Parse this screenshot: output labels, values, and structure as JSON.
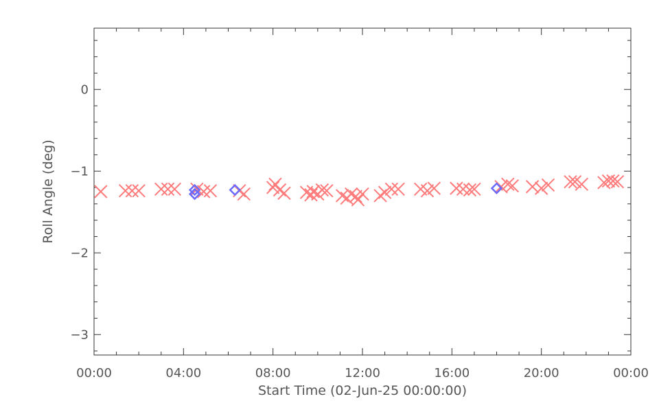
{
  "chart_data": {
    "type": "scatter",
    "title": "",
    "xlabel": "Start Time (02-Jun-25 00:00:00)",
    "ylabel": "Roll Angle (deg)",
    "x_unit": "hours",
    "xlim": [
      0,
      24
    ],
    "ylim": [
      -3.25,
      0.75
    ],
    "x_ticks": [
      0,
      4,
      8,
      12,
      16,
      20,
      24
    ],
    "x_tick_labels": [
      "00:00",
      "04:00",
      "08:00",
      "12:00",
      "16:00",
      "20:00",
      "00:00"
    ],
    "y_ticks": [
      0,
      -1,
      -2,
      -3
    ],
    "y_tick_labels": [
      "0",
      "−1",
      "−2",
      "−3"
    ],
    "grid": false,
    "series": [
      {
        "marker": "x",
        "color": "#ff7a7a",
        "points": [
          [
            0.3,
            -1.25
          ],
          [
            1.4,
            -1.24
          ],
          [
            1.7,
            -1.24
          ],
          [
            2.0,
            -1.24
          ],
          [
            3.0,
            -1.22
          ],
          [
            3.3,
            -1.22
          ],
          [
            3.6,
            -1.22
          ],
          [
            4.6,
            -1.22
          ],
          [
            4.9,
            -1.25
          ],
          [
            5.2,
            -1.24
          ],
          [
            6.5,
            -1.24
          ],
          [
            6.7,
            -1.28
          ],
          [
            8.0,
            -1.2
          ],
          [
            8.1,
            -1.16
          ],
          [
            8.3,
            -1.23
          ],
          [
            8.5,
            -1.27
          ],
          [
            9.5,
            -1.26
          ],
          [
            9.7,
            -1.29
          ],
          [
            9.8,
            -1.25
          ],
          [
            10.0,
            -1.28
          ],
          [
            10.2,
            -1.23
          ],
          [
            10.4,
            -1.24
          ],
          [
            11.1,
            -1.3
          ],
          [
            11.3,
            -1.33
          ],
          [
            11.5,
            -1.28
          ],
          [
            11.7,
            -1.31
          ],
          [
            11.8,
            -1.35
          ],
          [
            12.0,
            -1.28
          ],
          [
            12.8,
            -1.3
          ],
          [
            13.0,
            -1.26
          ],
          [
            13.3,
            -1.22
          ],
          [
            13.6,
            -1.22
          ],
          [
            14.6,
            -1.22
          ],
          [
            14.9,
            -1.24
          ],
          [
            15.2,
            -1.21
          ],
          [
            16.2,
            -1.21
          ],
          [
            16.5,
            -1.22
          ],
          [
            16.8,
            -1.23
          ],
          [
            17.0,
            -1.22
          ],
          [
            18.2,
            -1.19
          ],
          [
            18.5,
            -1.16
          ],
          [
            18.7,
            -1.18
          ],
          [
            19.6,
            -1.19
          ],
          [
            20.0,
            -1.21
          ],
          [
            20.3,
            -1.17
          ],
          [
            21.3,
            -1.13
          ],
          [
            21.5,
            -1.13
          ],
          [
            21.8,
            -1.16
          ],
          [
            22.8,
            -1.14
          ],
          [
            23.0,
            -1.12
          ],
          [
            23.2,
            -1.12
          ],
          [
            23.4,
            -1.13
          ]
        ]
      },
      {
        "marker": "diamond",
        "color": "#6b6bff",
        "points": [
          [
            4.5,
            -1.23
          ],
          [
            4.5,
            -1.28
          ],
          [
            6.3,
            -1.23
          ],
          [
            18.0,
            -1.21
          ]
        ]
      }
    ]
  }
}
